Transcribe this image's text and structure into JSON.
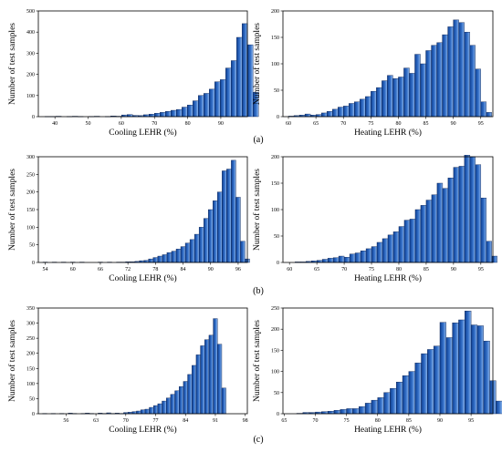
{
  "panels": [
    "(a)",
    "(b)",
    "(c)"
  ],
  "colors": {
    "bar_dark": "#0d3f93",
    "bar_mid": "#3571c9",
    "bar_light": "#8fb6ea",
    "bar_stroke": "#0a1f4d"
  },
  "chart_data": [
    {
      "type": "bar",
      "panel": "(a)",
      "position": "left",
      "xlabel": "Cooling LEHR (%)",
      "ylabel": "Number of test samples",
      "xlim": [
        35,
        98
      ],
      "ylim": [
        0,
        500
      ],
      "xticks": [
        40,
        50,
        60,
        70,
        80,
        90
      ],
      "yticks": [
        0,
        100,
        200,
        300,
        400,
        500
      ],
      "bin_start": 37.0,
      "bin_width": 1.65,
      "values": [
        1,
        1,
        2,
        0,
        1,
        2,
        1,
        0,
        1,
        2,
        0,
        1,
        3,
        2,
        8,
        10,
        6,
        5,
        9,
        12,
        16,
        20,
        25,
        30,
        34,
        45,
        55,
        75,
        100,
        110,
        130,
        165,
        175,
        230,
        265,
        375,
        440,
        340,
        115
      ]
    },
    {
      "type": "bar",
      "panel": "(a)",
      "position": "right",
      "xlabel": "Heating LEHR (%)",
      "ylabel": "Number of test samples",
      "xlim": [
        59,
        97.2
      ],
      "ylim": [
        0,
        200
      ],
      "xticks": [
        60,
        65,
        70,
        75,
        80,
        85,
        90,
        95
      ],
      "yticks": [
        0,
        50,
        100,
        150,
        200
      ],
      "bin_start": 60.0,
      "bin_width": 1.0,
      "values": [
        1,
        2,
        3,
        5,
        3,
        4,
        7,
        10,
        14,
        18,
        20,
        25,
        28,
        33,
        38,
        48,
        55,
        68,
        78,
        72,
        75,
        92,
        82,
        118,
        100,
        125,
        135,
        140,
        155,
        170,
        183,
        178,
        160,
        135,
        90,
        28,
        8
      ]
    },
    {
      "type": "bar",
      "panel": "(b)",
      "position": "left",
      "xlabel": "Cooling LEHR (%)",
      "ylabel": "Number of test samples",
      "xlim": [
        52.5,
        98
      ],
      "ylim": [
        0,
        300
      ],
      "xticks": [
        54,
        60,
        66,
        72,
        78,
        84,
        90,
        96
      ],
      "yticks": [
        0,
        50,
        100,
        150,
        200,
        250,
        300
      ],
      "bin_start": 53.5,
      "bin_width": 1.0,
      "values": [
        1,
        0,
        1,
        0,
        1,
        0,
        1,
        0,
        1,
        0,
        0,
        0,
        1,
        0,
        1,
        0,
        1,
        1,
        2,
        2,
        3,
        5,
        6,
        10,
        14,
        18,
        22,
        28,
        32,
        38,
        45,
        55,
        65,
        80,
        100,
        125,
        150,
        175,
        200,
        260,
        265,
        290,
        185,
        60,
        10
      ]
    },
    {
      "type": "bar",
      "panel": "(b)",
      "position": "right",
      "xlabel": "Heating LEHR (%)",
      "ylabel": "Number of test samples",
      "xlim": [
        58.8,
        97.2
      ],
      "ylim": [
        0,
        200
      ],
      "xticks": [
        60,
        65,
        70,
        75,
        80,
        85,
        90,
        95
      ],
      "yticks": [
        0,
        50,
        100,
        150,
        200
      ],
      "bin_start": 60.0,
      "bin_width": 1.0,
      "values": [
        0,
        1,
        1,
        2,
        3,
        4,
        6,
        8,
        9,
        12,
        10,
        16,
        18,
        22,
        26,
        30,
        38,
        45,
        52,
        58,
        68,
        80,
        82,
        100,
        108,
        118,
        128,
        150,
        140,
        160,
        180,
        182,
        203,
        200,
        185,
        122,
        40,
        12
      ]
    },
    {
      "type": "bar",
      "panel": "(c)",
      "position": "left",
      "xlabel": "Cooling LEHR (%)",
      "ylabel": "Number of test samples",
      "xlim": [
        49.5,
        98.5
      ],
      "ylim": [
        0,
        350
      ],
      "xticks": [
        56,
        63,
        70,
        77,
        84,
        91,
        98
      ],
      "yticks": [
        0,
        50,
        100,
        150,
        200,
        250,
        300,
        350
      ],
      "bin_start": 50.5,
      "bin_width": 1.0,
      "values": [
        1,
        0,
        1,
        0,
        1,
        0,
        2,
        1,
        0,
        1,
        2,
        1,
        0,
        2,
        1,
        3,
        1,
        2,
        1,
        4,
        5,
        7,
        9,
        13,
        15,
        21,
        27,
        33,
        42,
        52,
        64,
        76,
        90,
        107,
        130,
        160,
        195,
        225,
        245,
        260,
        315,
        230,
        85
      ]
    },
    {
      "type": "bar",
      "panel": "(c)",
      "position": "right",
      "xlabel": "Heating LEHR (%)",
      "ylabel": "Number of test samples",
      "xlim": [
        64.8,
        98.5
      ],
      "ylim": [
        0,
        250
      ],
      "xticks": [
        65,
        70,
        75,
        80,
        85,
        90,
        95
      ],
      "yticks": [
        0,
        50,
        100,
        150,
        200,
        250
      ],
      "bin_start": 67.0,
      "bin_width": 1.0,
      "values": [
        1,
        3,
        3,
        4,
        5,
        6,
        8,
        10,
        12,
        12,
        17,
        25,
        32,
        38,
        50,
        60,
        75,
        90,
        100,
        120,
        142,
        152,
        160,
        216,
        180,
        215,
        222,
        243,
        210,
        208,
        172,
        78,
        30
      ]
    }
  ]
}
